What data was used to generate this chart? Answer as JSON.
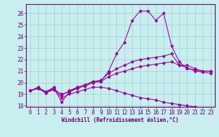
{
  "xlabel": "Windchill (Refroidissement éolien,°C)",
  "background_color": "#c8eef0",
  "line_color": "#990099",
  "xlim": [
    -0.5,
    23.5
  ],
  "ylim": [
    17.9,
    26.8
  ],
  "yticks": [
    18,
    19,
    20,
    21,
    22,
    23,
    24,
    25,
    26
  ],
  "xticks": [
    0,
    1,
    2,
    3,
    4,
    5,
    6,
    7,
    8,
    9,
    10,
    11,
    12,
    13,
    14,
    15,
    16,
    17,
    18,
    19,
    20,
    21,
    22,
    23
  ],
  "curve1_x": [
    0,
    1,
    2,
    3,
    4,
    5,
    6,
    7,
    8,
    9,
    10,
    11,
    12,
    13,
    14,
    15,
    16,
    17,
    18,
    19,
    20,
    21,
    22,
    23
  ],
  "curve1_y": [
    19.3,
    19.6,
    19.2,
    19.6,
    18.3,
    19.2,
    19.6,
    19.8,
    20.1,
    20.1,
    21.0,
    22.5,
    23.5,
    25.4,
    26.2,
    26.2,
    25.4,
    26.0,
    23.2,
    21.8,
    21.2,
    21.1,
    21.0,
    21.0
  ],
  "curve2_x": [
    0,
    1,
    2,
    3,
    4,
    5,
    6,
    7,
    8,
    9,
    10,
    11,
    12,
    13,
    14,
    15,
    16,
    17,
    18,
    19,
    20,
    21,
    22,
    23
  ],
  "curve2_y": [
    19.3,
    19.5,
    19.2,
    19.5,
    18.9,
    19.3,
    19.6,
    19.8,
    20.1,
    20.2,
    20.8,
    21.2,
    21.5,
    21.8,
    22.0,
    22.1,
    22.2,
    22.3,
    22.5,
    21.5,
    21.5,
    21.2,
    21.0,
    21.0
  ],
  "curve3_x": [
    0,
    1,
    2,
    3,
    4,
    5,
    6,
    7,
    8,
    9,
    10,
    11,
    12,
    13,
    14,
    15,
    16,
    17,
    18,
    19,
    20,
    21,
    22,
    23
  ],
  "curve3_y": [
    19.3,
    19.5,
    19.2,
    19.4,
    19.0,
    19.2,
    19.5,
    19.7,
    20.0,
    20.1,
    20.5,
    20.8,
    21.0,
    21.2,
    21.4,
    21.5,
    21.6,
    21.7,
    21.8,
    21.5,
    21.3,
    21.0,
    20.9,
    20.8
  ],
  "curve4_x": [
    0,
    1,
    2,
    3,
    4,
    5,
    6,
    7,
    8,
    9,
    10,
    11,
    12,
    13,
    14,
    15,
    16,
    17,
    18,
    19,
    20,
    21,
    22,
    23
  ],
  "curve4_y": [
    19.3,
    19.5,
    19.1,
    19.4,
    18.7,
    19.0,
    19.2,
    19.4,
    19.6,
    19.6,
    19.5,
    19.3,
    19.1,
    18.9,
    18.7,
    18.6,
    18.5,
    18.3,
    18.2,
    18.1,
    18.0,
    17.9,
    17.8,
    17.75
  ],
  "tick_fontsize": 5.5,
  "xlabel_fontsize": 5.5,
  "grid_color": "#9ecece",
  "spine_color": "#660066"
}
